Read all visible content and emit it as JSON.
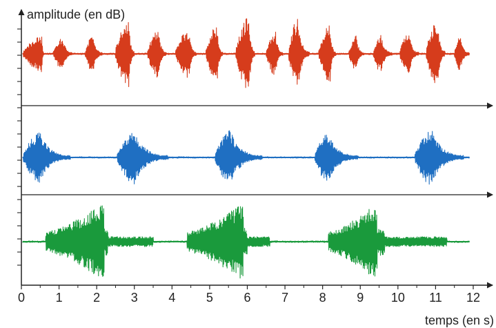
{
  "chart_data": {
    "type": "line",
    "title": "",
    "ylabel": "amplitude (en dB)",
    "xlabel": "temps (en s)",
    "xlim": [
      0,
      12
    ],
    "x_ticks": [
      "0",
      "1",
      "2",
      "3",
      "4",
      "5",
      "6",
      "7",
      "8",
      "9",
      "10",
      "11",
      "12"
    ],
    "grid": false,
    "colors": {
      "red": "#d63c1c",
      "blue": "#1f6fc2",
      "green": "#1a9a3c",
      "axis": "#222222"
    },
    "series": [
      {
        "color": "red",
        "bursts": [
          {
            "start": 0.05,
            "end": 0.6,
            "peak": 0.55,
            "amp": 0.45
          },
          {
            "start": 0.85,
            "end": 1.35,
            "peak": 1.1,
            "amp": 0.42
          },
          {
            "start": 1.7,
            "end": 2.15,
            "peak": 1.9,
            "amp": 0.48
          },
          {
            "start": 2.5,
            "end": 3.0,
            "peak": 2.85,
            "amp": 0.85
          },
          {
            "start": 3.35,
            "end": 3.85,
            "peak": 3.65,
            "amp": 0.6
          },
          {
            "start": 4.1,
            "end": 4.65,
            "peak": 4.45,
            "amp": 0.62
          },
          {
            "start": 4.9,
            "end": 5.35,
            "peak": 5.2,
            "amp": 0.72
          },
          {
            "start": 5.7,
            "end": 6.2,
            "peak": 6.05,
            "amp": 0.95
          },
          {
            "start": 6.5,
            "end": 6.95,
            "peak": 6.75,
            "amp": 0.55
          },
          {
            "start": 7.1,
            "end": 7.65,
            "peak": 7.35,
            "amp": 0.9
          },
          {
            "start": 7.9,
            "end": 8.35,
            "peak": 8.2,
            "amp": 0.72
          },
          {
            "start": 8.7,
            "end": 9.1,
            "peak": 8.9,
            "amp": 0.45
          },
          {
            "start": 9.35,
            "end": 9.85,
            "peak": 9.55,
            "amp": 0.48
          },
          {
            "start": 10.05,
            "end": 10.55,
            "peak": 10.3,
            "amp": 0.55
          },
          {
            "start": 10.75,
            "end": 11.25,
            "peak": 11.05,
            "amp": 0.85
          },
          {
            "start": 11.5,
            "end": 11.9,
            "peak": 11.65,
            "amp": 0.45
          }
        ]
      },
      {
        "color": "blue",
        "bursts": [
          {
            "start": 0.05,
            "end": 1.3,
            "peak": 0.5,
            "amp": 0.7
          },
          {
            "start": 2.55,
            "end": 3.9,
            "peak": 3.0,
            "amp": 0.75
          },
          {
            "start": 5.15,
            "end": 6.4,
            "peak": 5.55,
            "amp": 0.75
          },
          {
            "start": 7.8,
            "end": 8.95,
            "peak": 8.15,
            "amp": 0.7
          },
          {
            "start": 10.45,
            "end": 11.75,
            "peak": 10.9,
            "amp": 0.78
          }
        ]
      },
      {
        "color": "green",
        "bursts": [
          {
            "start": 0.65,
            "end": 2.3,
            "peak": 2.2,
            "amp": 0.95,
            "tail_end": 3.5
          },
          {
            "start": 4.4,
            "end": 6.0,
            "peak": 5.9,
            "amp": 0.95,
            "tail_end": 6.6
          },
          {
            "start": 8.15,
            "end": 9.65,
            "peak": 9.45,
            "amp": 0.95,
            "tail_end": 11.3
          }
        ]
      }
    ]
  }
}
